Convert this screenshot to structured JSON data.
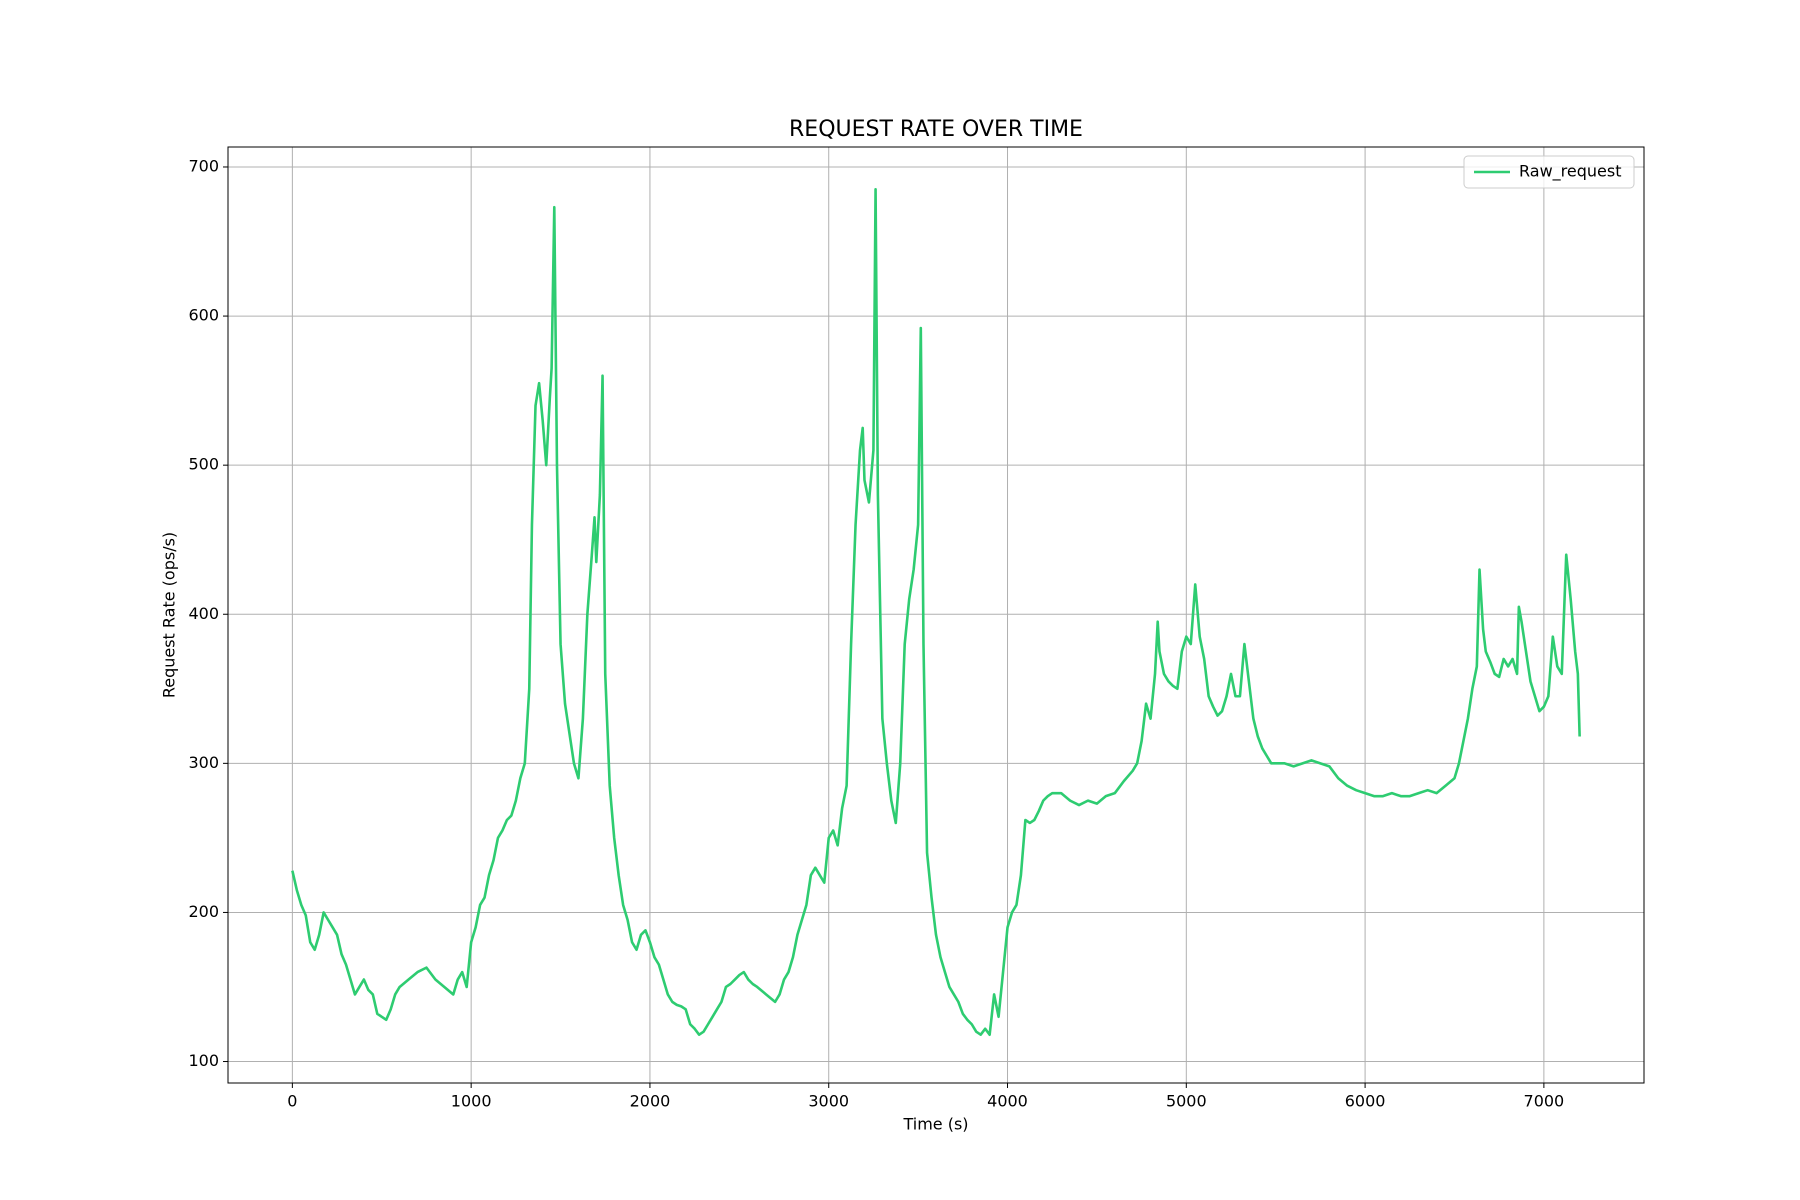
{
  "chart_data": {
    "type": "line",
    "title": "REQUEST RATE OVER TIME",
    "xlabel": "Time (s)",
    "ylabel": "Request Rate (ops/s)",
    "x": [
      0,
      25,
      50,
      75,
      100,
      125,
      150,
      175,
      200,
      225,
      250,
      275,
      300,
      325,
      350,
      375,
      400,
      425,
      450,
      475,
      500,
      525,
      550,
      575,
      600,
      650,
      700,
      750,
      800,
      850,
      900,
      925,
      950,
      975,
      1000,
      1025,
      1050,
      1075,
      1100,
      1125,
      1150,
      1175,
      1200,
      1225,
      1250,
      1275,
      1300,
      1325,
      1340,
      1360,
      1380,
      1400,
      1420,
      1440,
      1450,
      1465,
      1480,
      1500,
      1525,
      1550,
      1575,
      1600,
      1625,
      1650,
      1675,
      1690,
      1700,
      1720,
      1735,
      1750,
      1775,
      1800,
      1825,
      1850,
      1875,
      1900,
      1925,
      1950,
      1975,
      2000,
      2025,
      2050,
      2075,
      2100,
      2125,
      2150,
      2175,
      2200,
      2225,
      2250,
      2275,
      2300,
      2325,
      2350,
      2375,
      2400,
      2425,
      2450,
      2475,
      2500,
      2525,
      2550,
      2575,
      2600,
      2650,
      2700,
      2725,
      2750,
      2775,
      2800,
      2825,
      2850,
      2875,
      2900,
      2925,
      2950,
      2975,
      3000,
      3025,
      3050,
      3075,
      3100,
      3125,
      3150,
      3175,
      3190,
      3200,
      3225,
      3250,
      3262,
      3275,
      3300,
      3325,
      3350,
      3375,
      3400,
      3425,
      3450,
      3475,
      3500,
      3515,
      3530,
      3550,
      3575,
      3600,
      3625,
      3650,
      3675,
      3700,
      3725,
      3750,
      3775,
      3800,
      3825,
      3850,
      3875,
      3900,
      3925,
      3950,
      3975,
      4000,
      4025,
      4050,
      4075,
      4100,
      4125,
      4150,
      4175,
      4200,
      4225,
      4250,
      4300,
      4350,
      4400,
      4450,
      4500,
      4550,
      4600,
      4650,
      4700,
      4725,
      4750,
      4775,
      4800,
      4825,
      4840,
      4850,
      4875,
      4900,
      4925,
      4950,
      4975,
      5000,
      5025,
      5050,
      5075,
      5100,
      5125,
      5150,
      5175,
      5200,
      5225,
      5250,
      5275,
      5300,
      5325,
      5350,
      5375,
      5400,
      5425,
      5450,
      5475,
      5500,
      5550,
      5600,
      5650,
      5700,
      5750,
      5800,
      5850,
      5900,
      5950,
      6000,
      6050,
      6100,
      6150,
      6200,
      6250,
      6300,
      6350,
      6400,
      6450,
      6500,
      6525,
      6550,
      6575,
      6600,
      6625,
      6640,
      6660,
      6675,
      6700,
      6725,
      6750,
      6775,
      6800,
      6825,
      6850,
      6860,
      6875,
      6900,
      6925,
      6950,
      6975,
      7000,
      7025,
      7050,
      7075,
      7100,
      7125,
      7150,
      7175,
      7190,
      7200
    ],
    "series": [
      {
        "name": "Raw_request",
        "color": "#2ecc71",
        "values": [
          228,
          215,
          205,
          198,
          180,
          175,
          185,
          200,
          195,
          190,
          185,
          172,
          165,
          155,
          145,
          150,
          155,
          148,
          145,
          132,
          130,
          128,
          135,
          145,
          150,
          155,
          160,
          163,
          155,
          150,
          145,
          155,
          160,
          150,
          180,
          190,
          205,
          210,
          225,
          235,
          250,
          255,
          262,
          265,
          275,
          290,
          300,
          350,
          460,
          540,
          555,
          530,
          500,
          545,
          565,
          673,
          500,
          380,
          340,
          320,
          300,
          290,
          330,
          400,
          440,
          465,
          435,
          480,
          560,
          360,
          285,
          250,
          225,
          205,
          195,
          180,
          175,
          185,
          188,
          180,
          170,
          165,
          155,
          145,
          140,
          138,
          137,
          135,
          125,
          122,
          118,
          120,
          125,
          130,
          135,
          140,
          150,
          152,
          155,
          158,
          160,
          155,
          152,
          150,
          145,
          140,
          145,
          155,
          160,
          170,
          185,
          195,
          205,
          225,
          230,
          225,
          220,
          250,
          255,
          245,
          270,
          285,
          380,
          460,
          510,
          525,
          490,
          475,
          510,
          685,
          480,
          330,
          300,
          275,
          260,
          300,
          380,
          410,
          430,
          460,
          592,
          380,
          240,
          210,
          185,
          170,
          160,
          150,
          145,
          140,
          132,
          128,
          125,
          120,
          118,
          122,
          118,
          145,
          130,
          160,
          190,
          200,
          205,
          225,
          262,
          260,
          262,
          268,
          275,
          278,
          280,
          280,
          275,
          272,
          275,
          273,
          278,
          280,
          288,
          295,
          300,
          315,
          340,
          330,
          360,
          395,
          375,
          360,
          355,
          352,
          350,
          375,
          385,
          380,
          420,
          385,
          370,
          345,
          338,
          332,
          335,
          345,
          360,
          345,
          345,
          380,
          355,
          330,
          318,
          310,
          305,
          300,
          300,
          300,
          298,
          300,
          302,
          300,
          298,
          290,
          285,
          282,
          280,
          278,
          278,
          280,
          278,
          278,
          280,
          282,
          280,
          285,
          290,
          300,
          315,
          330,
          350,
          365,
          430,
          390,
          375,
          368,
          360,
          358,
          370,
          365,
          370,
          360,
          405,
          395,
          375,
          355,
          345,
          335,
          338,
          345,
          385,
          365,
          360,
          440,
          410,
          375,
          360,
          318
        ]
      }
    ],
    "xlim": [
      -360,
      7560
    ],
    "ylim": [
      85.6,
      713.4
    ],
    "xticks": [
      0,
      1000,
      2000,
      3000,
      4000,
      5000,
      6000,
      7000
    ],
    "yticks": [
      100,
      200,
      300,
      400,
      500,
      600,
      700
    ],
    "grid": true,
    "legend": "upper right"
  }
}
